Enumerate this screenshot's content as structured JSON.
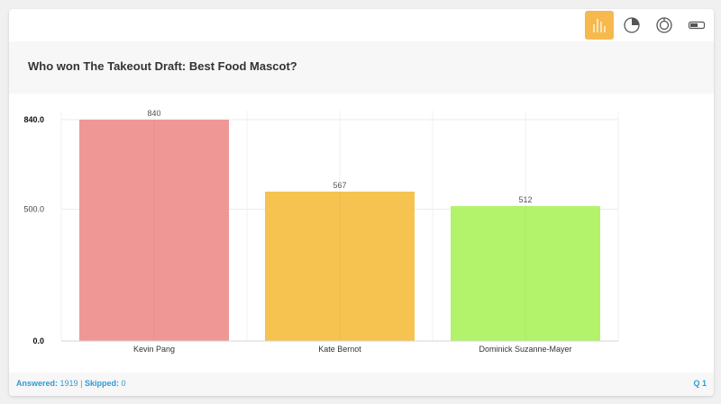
{
  "toolbar": {
    "buttons": [
      {
        "name": "bar-chart-icon",
        "active": true
      },
      {
        "name": "pie-chart-icon",
        "active": false
      },
      {
        "name": "donut-chart-icon",
        "active": false
      },
      {
        "name": "toggle-icon",
        "active": false
      }
    ],
    "accent_color": "#f6b94e"
  },
  "question": {
    "text": "Who won The Takeout Draft: Best Food Mascot?"
  },
  "footer": {
    "answered_label": "Answered:",
    "answered_value": "1919",
    "separator": "|",
    "skipped_label": "Skipped:",
    "skipped_value": "0",
    "question_number": "Q 1"
  },
  "chart_data": {
    "type": "bar",
    "categories": [
      "Kevin Pang",
      "Kate Bernot",
      "Dominick Suzanne-Mayer"
    ],
    "values": [
      840,
      567,
      512
    ],
    "data_labels": [
      "840",
      "567",
      "512"
    ],
    "colors": [
      "#ef9795",
      "#f6c351",
      "#b3f26b"
    ],
    "ylim": [
      0,
      840
    ],
    "y_ticks": [
      0,
      500,
      840
    ],
    "y_tick_labels": [
      "0.0",
      "500.0",
      "840.0"
    ],
    "title": "",
    "xlabel": "",
    "ylabel": "",
    "grid": true
  }
}
